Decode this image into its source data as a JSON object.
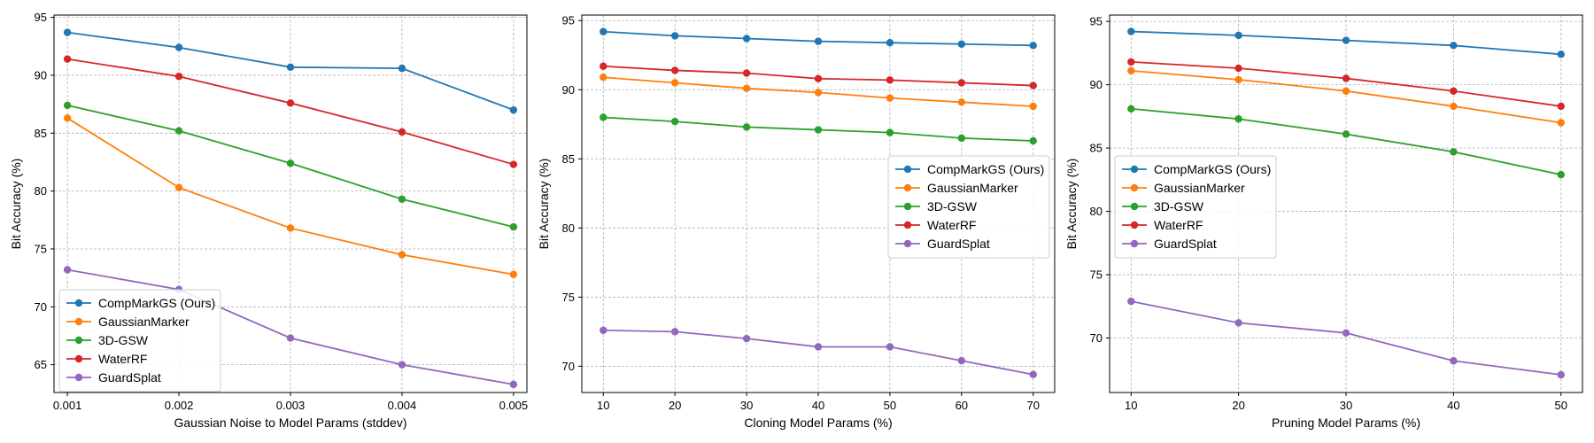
{
  "colors": {
    "CompMarkGS (Ours)": "#1f77b4",
    "GaussianMarker": "#ff7f0e",
    "3D-GSW": "#2ca02c",
    "WaterRF": "#d62728",
    "GuardSplat": "#9467bd"
  },
  "chart_data": [
    {
      "type": "line",
      "xlabel": "Gaussian Noise to Model Params (stddev)",
      "ylabel": "Bit Accuracy (%)",
      "x": [
        0.001,
        0.002,
        0.003,
        0.004,
        0.005
      ],
      "x_tick_labels": [
        "0.001",
        "0.002",
        "0.003",
        "0.004",
        "0.005"
      ],
      "xlim": [
        0.00088,
        0.00512
      ],
      "ylim": [
        62.6,
        95.2
      ],
      "yticks": [
        65,
        70,
        75,
        80,
        85,
        90,
        95
      ],
      "grid": true,
      "legend_position": "lower-left",
      "series": [
        {
          "name": "CompMarkGS (Ours)",
          "values": [
            93.7,
            92.4,
            90.7,
            90.6,
            87.0
          ]
        },
        {
          "name": "GaussianMarker",
          "values": [
            86.3,
            80.3,
            76.8,
            74.5,
            72.8
          ]
        },
        {
          "name": "3D-GSW",
          "values": [
            87.4,
            85.2,
            82.4,
            79.3,
            76.9
          ]
        },
        {
          "name": "WaterRF",
          "values": [
            91.4,
            89.9,
            87.6,
            85.1,
            82.3
          ]
        },
        {
          "name": "GuardSplat",
          "values": [
            73.2,
            71.5,
            67.3,
            65.0,
            63.3
          ]
        }
      ]
    },
    {
      "type": "line",
      "xlabel": "Cloning Model Params (%)",
      "ylabel": "Bit Accuracy (%)",
      "x": [
        10,
        20,
        30,
        40,
        50,
        60,
        70
      ],
      "x_tick_labels": [
        "10",
        "20",
        "30",
        "40",
        "50",
        "60",
        "70"
      ],
      "xlim": [
        7.0,
        73.0
      ],
      "ylim": [
        68.1,
        95.4
      ],
      "yticks": [
        70,
        75,
        80,
        85,
        90,
        95
      ],
      "grid": true,
      "legend_position": "center-right",
      "series": [
        {
          "name": "CompMarkGS (Ours)",
          "values": [
            94.2,
            93.9,
            93.7,
            93.5,
            93.4,
            93.3,
            93.2
          ]
        },
        {
          "name": "GaussianMarker",
          "values": [
            90.9,
            90.5,
            90.1,
            89.8,
            89.4,
            89.1,
            88.8
          ]
        },
        {
          "name": "3D-GSW",
          "values": [
            88.0,
            87.7,
            87.3,
            87.1,
            86.9,
            86.5,
            86.3
          ]
        },
        {
          "name": "WaterRF",
          "values": [
            91.7,
            91.4,
            91.2,
            90.8,
            90.7,
            90.5,
            90.3
          ]
        },
        {
          "name": "GuardSplat",
          "values": [
            72.6,
            72.5,
            72.0,
            71.4,
            71.4,
            70.4,
            69.4
          ]
        }
      ]
    },
    {
      "type": "line",
      "xlabel": "Pruning Model Params (%)",
      "ylabel": "Bit Accuracy (%)",
      "x": [
        10,
        20,
        30,
        40,
        50
      ],
      "x_tick_labels": [
        "10",
        "20",
        "30",
        "40",
        "50"
      ],
      "xlim": [
        8.0,
        52.0
      ],
      "ylim": [
        65.7,
        95.5
      ],
      "yticks": [
        70,
        75,
        80,
        85,
        90,
        95
      ],
      "grid": true,
      "legend_position": "upper-left",
      "series": [
        {
          "name": "CompMarkGS (Ours)",
          "values": [
            94.2,
            93.9,
            93.5,
            93.1,
            92.4
          ]
        },
        {
          "name": "GaussianMarker",
          "values": [
            91.1,
            90.4,
            89.5,
            88.3,
            87.0
          ]
        },
        {
          "name": "3D-GSW",
          "values": [
            88.1,
            87.3,
            86.1,
            84.7,
            82.9
          ]
        },
        {
          "name": "WaterRF",
          "values": [
            91.8,
            91.3,
            90.5,
            89.5,
            88.3
          ]
        },
        {
          "name": "GuardSplat",
          "values": [
            72.9,
            71.2,
            70.4,
            68.2,
            67.1
          ]
        }
      ]
    }
  ]
}
